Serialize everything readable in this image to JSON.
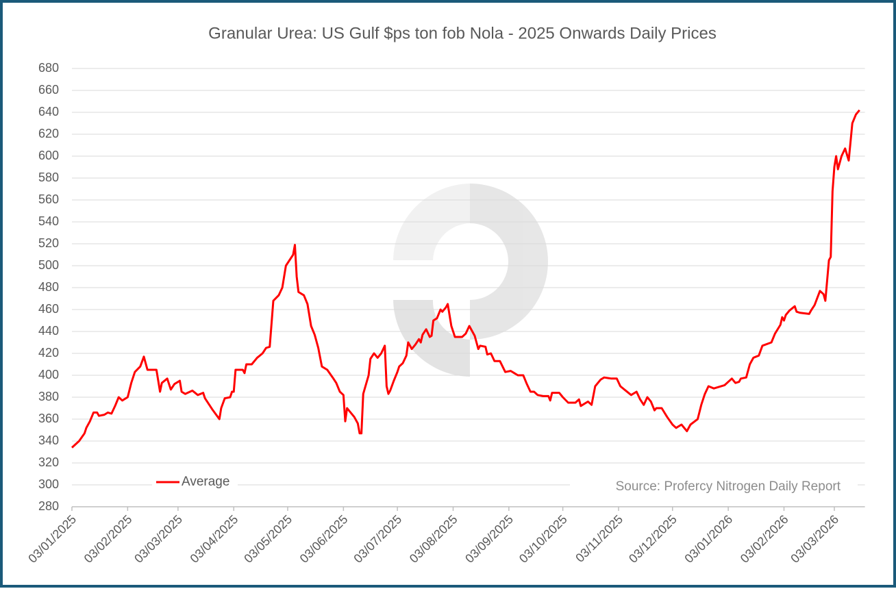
{
  "chart_data": {
    "type": "line",
    "title": "Granular Urea: US Gulf $ps ton fob Nola - 2025 Onwards Daily Prices",
    "annotation": "Source: Profercy Nitrogen Daily Report",
    "x": [
      "03/01/2025",
      "07/01/2025",
      "10/01/2025",
      "11/01/2025",
      "13/01/2025",
      "15/01/2025",
      "17/01/2025",
      "18/01/2025",
      "21/01/2025",
      "23/01/2025",
      "25/01/2025",
      "27/01/2025",
      "29/01/2025",
      "31/01/2025",
      "03/02/2025",
      "05/02/2025",
      "07/02/2025",
      "10/02/2025",
      "12/02/2025",
      "14/02/2025",
      "19/02/2025",
      "21/02/2025",
      "22/02/2025",
      "25/02/2025",
      "27/02/2025",
      "01/03/2025",
      "04/03/2025",
      "05/03/2025",
      "07/03/2025",
      "11/03/2025",
      "14/03/2025",
      "17/03/2025",
      "18/03/2025",
      "22/03/2025",
      "26/03/2025",
      "27/03/2025",
      "29/03/2025",
      "01/04/2025",
      "02/04/2025",
      "03/04/2025",
      "04/04/2025",
      "08/04/2025",
      "09/04/2025",
      "10/04/2025",
      "13/04/2025",
      "16/04/2025",
      "19/04/2025",
      "21/04/2025",
      "23/04/2025",
      "25/04/2025",
      "28/04/2025",
      "30/04/2025",
      "01/05/2025",
      "02/05/2025",
      "04/05/2025",
      "06/05/2025",
      "07/05/2025",
      "08/05/2025",
      "09/05/2025",
      "12/05/2025",
      "14/05/2025",
      "16/05/2025",
      "18/05/2025",
      "20/05/2025",
      "22/05/2025",
      "25/05/2025",
      "28/05/2025",
      "30/05/2025",
      "01/06/2025",
      "03/06/2025",
      "04/06/2025",
      "05/06/2025",
      "07/06/2025",
      "09/06/2025",
      "11/06/2025",
      "12/06/2025",
      "13/06/2025",
      "14/06/2025",
      "17/06/2025",
      "18/06/2025",
      "20/06/2025",
      "22/06/2025",
      "24/06/2025",
      "26/06/2025",
      "27/06/2025",
      "28/06/2025",
      "29/06/2025",
      "01/07/2025",
      "03/07/2025",
      "04/07/2025",
      "06/07/2025",
      "08/07/2025",
      "09/07/2025",
      "11/07/2025",
      "13/07/2025",
      "15/07/2025",
      "16/07/2025",
      "17/07/2025",
      "19/07/2025",
      "21/07/2025",
      "22/07/2025",
      "23/07/2025",
      "25/07/2025",
      "27/07/2025",
      "28/07/2025",
      "30/07/2025",
      "31/07/2025",
      "02/08/2025",
      "03/08/2025",
      "04/08/2025",
      "08/08/2025",
      "10/08/2025",
      "12/08/2025",
      "15/08/2025",
      "17/08/2025",
      "18/08/2025",
      "21/08/2025",
      "22/08/2025",
      "24/08/2025",
      "26/08/2025",
      "29/08/2025",
      "01/09/2025",
      "04/09/2025",
      "06/09/2025",
      "08/09/2025",
      "11/09/2025",
      "13/09/2025",
      "15/09/2025",
      "17/09/2025",
      "19/09/2025",
      "22/09/2025",
      "25/09/2025",
      "26/09/2025",
      "27/09/2025",
      "01/10/2025",
      "03/10/2025",
      "06/10/2025",
      "10/10/2025",
      "12/10/2025",
      "13/10/2025",
      "17/10/2025",
      "19/10/2025",
      "21/10/2025",
      "24/10/2025",
      "26/10/2025",
      "30/10/2025",
      "02/11/2025",
      "04/11/2025",
      "07/11/2025",
      "10/11/2025",
      "13/11/2025",
      "15/11/2025",
      "17/11/2025",
      "19/11/2025",
      "21/11/2025",
      "23/11/2025",
      "24/11/2025",
      "27/11/2025",
      "30/11/2025",
      "03/12/2025",
      "05/12/2025",
      "08/12/2025",
      "11/12/2025",
      "13/12/2025",
      "17/12/2025",
      "19/12/2025",
      "21/12/2025",
      "23/12/2025",
      "26/12/2025",
      "01/01/2026",
      "05/01/2026",
      "07/01/2026",
      "09/01/2026",
      "10/01/2026",
      "13/01/2026",
      "15/01/2026",
      "17/01/2026",
      "20/01/2026",
      "22/01/2026",
      "27/01/2026",
      "29/01/2026",
      "01/02/2026",
      "02/02/2026",
      "03/02/2026",
      "04/02/2026",
      "06/02/2026",
      "09/02/2026",
      "10/02/2026",
      "12/02/2026",
      "17/02/2026",
      "18/02/2026",
      "20/02/2026",
      "23/02/2026",
      "25/02/2026",
      "26/02/2026",
      "28/02/2026",
      "01/03/2026",
      "02/03/2026",
      "03/03/2026",
      "04/03/2026",
      "05/03/2026",
      "07/03/2026",
      "09/03/2026",
      "11/03/2026",
      "13/03/2026",
      "15/03/2026",
      "17/03/2026"
    ],
    "series": [
      {
        "name": "Average",
        "color": "#ff0000",
        "values": [
          334,
          340,
          347,
          352,
          358,
          366,
          366,
          363,
          364,
          366,
          365,
          372,
          380,
          377,
          380,
          393,
          403,
          408,
          417,
          405,
          405,
          385,
          393,
          397,
          387,
          392,
          395,
          385,
          383,
          386,
          382,
          384,
          379,
          369,
          360,
          370,
          379,
          380,
          385,
          385,
          405,
          405,
          402,
          410,
          410,
          416,
          420,
          425,
          426,
          468,
          473,
          480,
          490,
          500,
          505,
          510,
          519,
          490,
          476,
          473,
          465,
          445,
          437,
          425,
          408,
          405,
          398,
          393,
          385,
          382,
          358,
          370,
          366,
          362,
          356,
          347,
          347,
          383,
          400,
          415,
          420,
          416,
          420,
          427,
          390,
          383,
          386,
          395,
          403,
          408,
          411,
          418,
          430,
          424,
          428,
          433,
          430,
          437,
          442,
          435,
          436,
          450,
          452,
          460,
          458,
          462,
          465,
          445,
          440,
          435,
          435,
          438,
          445,
          436,
          424,
          427,
          426,
          419,
          420,
          413,
          413,
          403,
          404,
          402,
          400,
          400,
          392,
          385,
          385,
          382,
          381,
          381,
          377,
          384,
          384,
          380,
          375,
          375,
          378,
          372,
          376,
          373,
          390,
          396,
          398,
          397,
          397,
          390,
          386,
          382,
          385,
          378,
          373,
          380,
          376,
          368,
          370,
          370,
          362,
          355,
          352,
          355,
          349,
          355,
          360,
          373,
          383,
          390,
          388,
          391,
          397,
          393,
          394,
          397,
          398,
          410,
          416,
          418,
          427,
          430,
          438,
          446,
          453,
          450,
          455,
          459,
          463,
          458,
          457,
          456,
          459,
          464,
          477,
          474,
          468,
          505,
          508,
          568,
          590,
          600,
          588,
          600,
          607,
          596,
          630,
          638,
          642
        ]
      }
    ],
    "xlim": [
      "03/01/2025",
      "20/03/2026"
    ],
    "xticks": [
      "03/01/2025",
      "03/02/2025",
      "03/03/2025",
      "03/04/2025",
      "03/05/2025",
      "03/06/2025",
      "03/07/2025",
      "03/08/2025",
      "03/09/2025",
      "03/10/2025",
      "03/11/2025",
      "03/12/2025",
      "03/01/2026",
      "03/02/2026",
      "03/03/2026"
    ],
    "ylim": [
      280,
      680
    ],
    "yticks": [
      280,
      300,
      320,
      340,
      360,
      380,
      400,
      420,
      440,
      460,
      480,
      500,
      520,
      540,
      560,
      580,
      600,
      620,
      640,
      660,
      680
    ],
    "grid": true,
    "legend": "lower-left"
  }
}
